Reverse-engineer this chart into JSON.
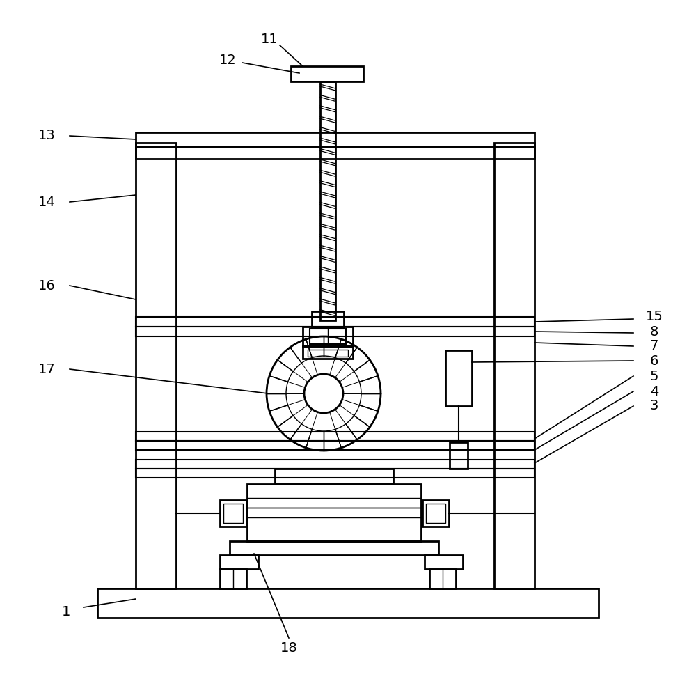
{
  "bg_color": "#ffffff",
  "line_color": "#000000",
  "fig_width": 10.0,
  "fig_height": 9.85,
  "dpi": 100
}
